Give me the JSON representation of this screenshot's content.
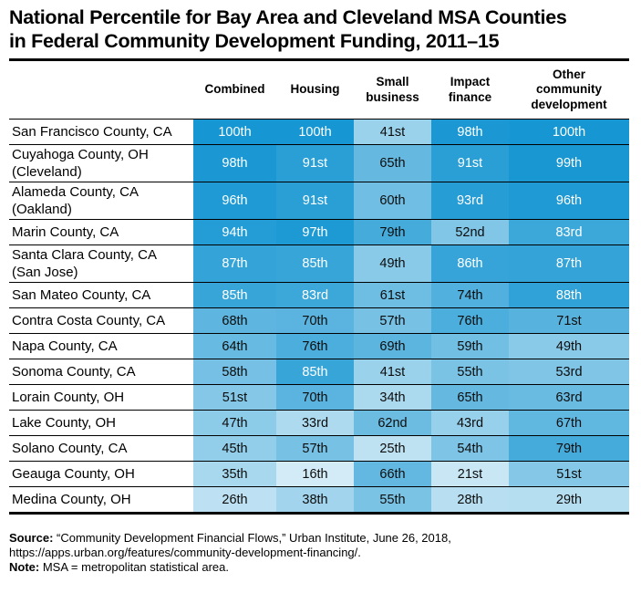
{
  "title": {
    "line1": "National Percentile for Bay Area and Cleveland MSA Counties",
    "line2": "in Federal Community Development Funding, 2011–15"
  },
  "chart_data": {
    "type": "heatmap",
    "title": "National Percentile for Bay Area and Cleveland MSA Counties in Federal Community Development Funding, 2011–15",
    "unit": "national percentile",
    "columns": [
      "Combined",
      "Housing",
      "Small business",
      "Impact finance",
      "Other community development"
    ],
    "color_scale": {
      "min_color": "#f7fbfd",
      "max_color": "#1696d2",
      "domain": [
        0,
        100
      ],
      "white_text_threshold": 80,
      "dark_text": "#0d0d0d",
      "light_text": "#ffffff"
    },
    "rows": [
      {
        "label": "San Francisco County, CA",
        "sublabel": "",
        "cells": [
          {
            "value": 100,
            "text": "100th"
          },
          {
            "value": 100,
            "text": "100th"
          },
          {
            "value": 41,
            "text": "41st"
          },
          {
            "value": 98,
            "text": "98th"
          },
          {
            "value": 100,
            "text": "100th"
          }
        ]
      },
      {
        "label": "Cuyahoga County, OH",
        "sublabel": "(Cleveland)",
        "cells": [
          {
            "value": 98,
            "text": "98th"
          },
          {
            "value": 91,
            "text": "91st"
          },
          {
            "value": 65,
            "text": "65th"
          },
          {
            "value": 91,
            "text": "91st"
          },
          {
            "value": 99,
            "text": "99th"
          }
        ]
      },
      {
        "label": "Alameda County, CA",
        "sublabel": "(Oakland)",
        "cells": [
          {
            "value": 96,
            "text": "96th"
          },
          {
            "value": 91,
            "text": "91st"
          },
          {
            "value": 60,
            "text": "60th"
          },
          {
            "value": 93,
            "text": "93rd"
          },
          {
            "value": 96,
            "text": "96th"
          }
        ]
      },
      {
        "label": "Marin County, CA",
        "sublabel": "",
        "cells": [
          {
            "value": 94,
            "text": "94th"
          },
          {
            "value": 97,
            "text": "97th"
          },
          {
            "value": 79,
            "text": "79th"
          },
          {
            "value": 52,
            "text": "52nd"
          },
          {
            "value": 83,
            "text": "83rd"
          }
        ]
      },
      {
        "label": "Santa Clara County, CA",
        "sublabel": "(San Jose)",
        "cells": [
          {
            "value": 87,
            "text": "87th"
          },
          {
            "value": 85,
            "text": "85th"
          },
          {
            "value": 49,
            "text": "49th"
          },
          {
            "value": 86,
            "text": "86th"
          },
          {
            "value": 87,
            "text": "87th"
          }
        ]
      },
      {
        "label": "San Mateo County, CA",
        "sublabel": "",
        "cells": [
          {
            "value": 85,
            "text": "85th"
          },
          {
            "value": 83,
            "text": "83rd"
          },
          {
            "value": 61,
            "text": "61st"
          },
          {
            "value": 74,
            "text": "74th"
          },
          {
            "value": 88,
            "text": "88th"
          }
        ]
      },
      {
        "label": "Contra Costa County, CA",
        "sublabel": "",
        "cells": [
          {
            "value": 68,
            "text": "68th"
          },
          {
            "value": 70,
            "text": "70th"
          },
          {
            "value": 57,
            "text": "57th"
          },
          {
            "value": 76,
            "text": "76th"
          },
          {
            "value": 71,
            "text": "71st"
          }
        ]
      },
      {
        "label": "Napa County, CA",
        "sublabel": "",
        "cells": [
          {
            "value": 64,
            "text": "64th"
          },
          {
            "value": 76,
            "text": "76th"
          },
          {
            "value": 69,
            "text": "69th"
          },
          {
            "value": 59,
            "text": "59th"
          },
          {
            "value": 49,
            "text": "49th"
          }
        ]
      },
      {
        "label": "Sonoma County, CA",
        "sublabel": "",
        "cells": [
          {
            "value": 58,
            "text": "58th"
          },
          {
            "value": 85,
            "text": "85th"
          },
          {
            "value": 41,
            "text": "41st"
          },
          {
            "value": 55,
            "text": "55th"
          },
          {
            "value": 53,
            "text": "53rd"
          }
        ]
      },
      {
        "label": "Lorain County, OH",
        "sublabel": "",
        "cells": [
          {
            "value": 51,
            "text": "51st"
          },
          {
            "value": 70,
            "text": "70th"
          },
          {
            "value": 34,
            "text": "34th"
          },
          {
            "value": 65,
            "text": "65th"
          },
          {
            "value": 63,
            "text": "63rd"
          }
        ]
      },
      {
        "label": "Lake County, OH",
        "sublabel": "",
        "cells": [
          {
            "value": 47,
            "text": "47th"
          },
          {
            "value": 33,
            "text": "33rd"
          },
          {
            "value": 62,
            "text": "62nd"
          },
          {
            "value": 43,
            "text": "43rd"
          },
          {
            "value": 67,
            "text": "67th"
          }
        ]
      },
      {
        "label": "Solano County, CA",
        "sublabel": "",
        "cells": [
          {
            "value": 45,
            "text": "45th"
          },
          {
            "value": 57,
            "text": "57th"
          },
          {
            "value": 25,
            "text": "25th"
          },
          {
            "value": 54,
            "text": "54th"
          },
          {
            "value": 79,
            "text": "79th"
          }
        ]
      },
      {
        "label": "Geauga County, OH",
        "sublabel": "",
        "cells": [
          {
            "value": 35,
            "text": "35th"
          },
          {
            "value": 16,
            "text": "16th"
          },
          {
            "value": 66,
            "text": "66th"
          },
          {
            "value": 21,
            "text": "21st"
          },
          {
            "value": 51,
            "text": "51st"
          }
        ]
      },
      {
        "label": "Medina County, OH",
        "sublabel": "",
        "cells": [
          {
            "value": 26,
            "text": "26th"
          },
          {
            "value": 38,
            "text": "38th"
          },
          {
            "value": 55,
            "text": "55th"
          },
          {
            "value": 28,
            "text": "28th"
          },
          {
            "value": 29,
            "text": "29th"
          }
        ]
      }
    ]
  },
  "footer": {
    "source_label": "Source:",
    "source_text": "“Community Development Financial Flows,” Urban Institute, June 26, 2018,",
    "source_url": "https://apps.urban.org/features/community-development-financing/.",
    "note_label": "Note:",
    "note_text": "MSA = metropolitan statistical area."
  },
  "colors": {
    "accent_blue": "#1696d2",
    "text": "#000000"
  }
}
